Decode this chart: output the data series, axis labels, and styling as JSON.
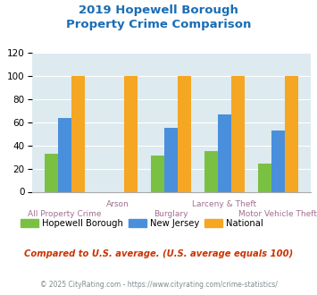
{
  "title_line1": "2019 Hopewell Borough",
  "title_line2": "Property Crime Comparison",
  "title_color": "#1a6db5",
  "categories": [
    "All Property Crime",
    "Arson",
    "Burglary",
    "Larceny & Theft",
    "Motor Vehicle Theft"
  ],
  "hopewell": [
    33,
    0,
    31,
    35,
    24
  ],
  "nj": [
    64,
    0,
    55,
    67,
    53
  ],
  "national": [
    100,
    100,
    100,
    100,
    100
  ],
  "hopewell_color": "#7ac143",
  "nj_color": "#4a8fdb",
  "national_color": "#f5a623",
  "bg_color": "#ddeaef",
  "ylim": [
    0,
    120
  ],
  "yticks": [
    0,
    20,
    40,
    60,
    80,
    100,
    120
  ],
  "xlabel_color": "#a07090",
  "grid_color": "#ffffff",
  "footer_text": "Compared to U.S. average. (U.S. average equals 100)",
  "footer_color": "#cc3300",
  "copyright_text": "© 2025 CityRating.com - https://www.cityrating.com/crime-statistics/",
  "copyright_color": "#7f8c8d",
  "legend_labels": [
    "Hopewell Borough",
    "New Jersey",
    "National"
  ],
  "bar_width": 0.25
}
